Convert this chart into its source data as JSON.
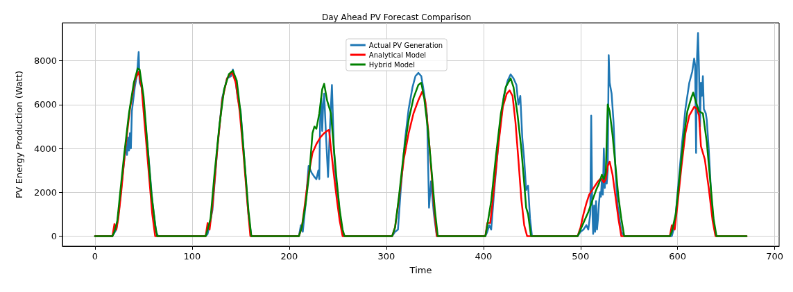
{
  "chart_data": {
    "type": "line",
    "title": "Day Ahead PV Forecast Comparison",
    "xlabel": "Time",
    "ylabel": "PV Energy Production (Watt)",
    "xlim": [
      -33.5,
      704.5
    ],
    "xticks": [
      0,
      100,
      200,
      300,
      400,
      500,
      600,
      700
    ],
    "ylim": [
      -460,
      9730
    ],
    "yticks": [
      0,
      2000,
      4000,
      6000,
      8000
    ],
    "grid": true,
    "legend": "top",
    "marker": "none",
    "line_style": "solid",
    "series": [
      {
        "name": "Actual PV Generation",
        "color": "#1f77b4",
        "x": [
          0,
          18,
          20,
          22,
          25,
          29,
          32,
          33,
          34,
          35,
          36,
          37,
          38,
          41,
          43,
          44,
          45,
          46,
          48,
          51,
          55,
          59,
          63,
          65,
          114,
          116,
          118,
          121,
          126,
          131,
          136,
          140,
          142,
          145,
          147,
          150,
          154,
          158,
          161,
          210,
          212,
          214,
          217,
          220,
          223,
          226,
          228,
          230,
          231,
          232,
          233,
          234,
          235,
          236,
          238,
          240,
          242,
          244,
          246,
          248,
          250,
          253,
          256,
          306,
          309,
          312,
          315,
          319,
          323,
          327,
          330,
          333,
          336,
          339,
          342,
          344,
          346,
          349,
          352,
          402,
          404,
          406,
          408,
          411,
          416,
          421,
          425,
          428,
          431,
          434,
          436,
          438,
          440,
          442,
          444,
          446,
          448,
          450,
          497,
          500,
          503,
          506,
          508,
          510,
          511,
          512,
          513,
          514,
          515,
          516,
          517,
          518,
          519,
          520,
          521,
          522,
          523,
          524,
          525,
          526,
          527,
          528,
          529,
          530,
          532,
          534,
          536,
          538,
          540,
          542,
          545,
          592,
          594,
          597,
          600,
          604,
          608,
          612,
          615,
          617,
          618,
          619,
          620,
          621,
          622,
          623,
          624,
          625,
          626,
          627,
          629,
          630,
          632,
          635,
          638
        ],
        "values": [
          0,
          0,
          150,
          300,
          1300,
          3000,
          4200,
          3700,
          4500,
          3900,
          4700,
          4000,
          5700,
          6800,
          7300,
          7800,
          8400,
          7000,
          6800,
          5600,
          3700,
          1600,
          200,
          0,
          0,
          100,
          500,
          1200,
          4000,
          6300,
          7200,
          7300,
          7600,
          7000,
          6300,
          5700,
          3400,
          1000,
          0,
          0,
          500,
          200,
          1500,
          3200,
          2900,
          2700,
          2600,
          3000,
          2600,
          5700,
          6300,
          4800,
          6000,
          6500,
          4500,
          2700,
          5000,
          6900,
          4000,
          2600,
          1900,
          700,
          0,
          0,
          200,
          300,
          2200,
          4300,
          5800,
          6800,
          7300,
          7450,
          7300,
          6500,
          5500,
          1300,
          2500,
          1000,
          0,
          0,
          200,
          500,
          300,
          2000,
          4500,
          6400,
          7100,
          7380,
          7200,
          6900,
          6000,
          6400,
          4500,
          3500,
          2100,
          2300,
          800,
          0,
          0,
          200,
          300,
          500,
          300,
          1000,
          5500,
          1500,
          100,
          1400,
          200,
          1600,
          300,
          800,
          1500,
          2000,
          1800,
          2600,
          1900,
          4000,
          2200,
          3000,
          2400,
          3000,
          8260,
          7000,
          6500,
          5200,
          3000,
          1500,
          800,
          200,
          0,
          0,
          0,
          500,
          2000,
          4000,
          5800,
          7000,
          7500,
          8100,
          7800,
          3800,
          8200,
          9270,
          7600,
          5000,
          7000,
          6400,
          7300,
          5800,
          5600,
          5300,
          4000,
          1500,
          300
        ]
      },
      {
        "name": "Analytical Model",
        "color": "#ff0000",
        "x": [
          0,
          18,
          20,
          22,
          24,
          27,
          31,
          36,
          41,
          45,
          48,
          51,
          55,
          59,
          62,
          114,
          116,
          118,
          121,
          126,
          131,
          136,
          141,
          145,
          149,
          153,
          157,
          160,
          210,
          213,
          216,
          220,
          224,
          228,
          232,
          236,
          239,
          241,
          243,
          246,
          249,
          252,
          255,
          306,
          309,
          313,
          318,
          323,
          328,
          333,
          337,
          340,
          343,
          346,
          349,
          352,
          402,
          404,
          407,
          410,
          415,
          420,
          424,
          427,
          430,
          433,
          436,
          439,
          442,
          445,
          497,
          500,
          503,
          506,
          509,
          512,
          515,
          518,
          520,
          522,
          524,
          526,
          528,
          530,
          533,
          536,
          539,
          542,
          592,
          594,
          597,
          600,
          604,
          608,
          612,
          617,
          620,
          622,
          624,
          628,
          632,
          636,
          639,
          671
        ],
        "values": [
          0,
          0,
          550,
          300,
          800,
          2000,
          3900,
          5800,
          7100,
          7500,
          6800,
          5200,
          3100,
          1000,
          0,
          0,
          600,
          300,
          1400,
          4000,
          6200,
          7200,
          7500,
          7000,
          5700,
          3700,
          1500,
          0,
          0,
          400,
          1400,
          2800,
          3800,
          4200,
          4500,
          4700,
          4800,
          4850,
          4000,
          2800,
          1700,
          700,
          0,
          0,
          400,
          1700,
          3500,
          4700,
          5600,
          6200,
          6600,
          6200,
          4900,
          3200,
          1400,
          0,
          0,
          600,
          600,
          1800,
          4000,
          5900,
          6500,
          6650,
          6400,
          5200,
          3500,
          1700,
          500,
          0,
          0,
          400,
          1000,
          1500,
          1900,
          2100,
          2300,
          2500,
          2600,
          2600,
          2450,
          2600,
          3200,
          3400,
          2800,
          1800,
          800,
          0,
          0,
          500,
          300,
          1500,
          3200,
          4700,
          5500,
          5900,
          5800,
          5500,
          4100,
          3500,
          2200,
          700,
          0,
          0
        ]
      },
      {
        "name": "Hybrid Model",
        "color": "#008000",
        "x": [
          0,
          18,
          20,
          23,
          26,
          30,
          35,
          40,
          44,
          46,
          50,
          54,
          58,
          62,
          64,
          114,
          116,
          119,
          123,
          128,
          133,
          138,
          142,
          146,
          150,
          154,
          158,
          161,
          210,
          213,
          217,
          221,
          224,
          226,
          228,
          231,
          234,
          236,
          239,
          243,
          246,
          249,
          252,
          255,
          257,
          306,
          309,
          313,
          318,
          323,
          328,
          333,
          336,
          339,
          343,
          347,
          350,
          353,
          402,
          404,
          408,
          413,
          418,
          423,
          428,
          431,
          435,
          439,
          442,
          444,
          446,
          449,
          497,
          500,
          504,
          508,
          512,
          516,
          519,
          522,
          524,
          526,
          528,
          530,
          533,
          536,
          539,
          542,
          545,
          592,
          594,
          598,
          602,
          606,
          610,
          614,
          616,
          619,
          622,
          626,
          630,
          634,
          637,
          640,
          671
        ],
        "values": [
          0,
          0,
          200,
          700,
          2000,
          3700,
          5600,
          7000,
          7650,
          7600,
          6400,
          4200,
          2000,
          500,
          0,
          0,
          300,
          800,
          2800,
          5000,
          6700,
          7400,
          7550,
          7100,
          5600,
          3400,
          1200,
          0,
          0,
          400,
          1500,
          3000,
          4700,
          5000,
          4900,
          5600,
          6700,
          6950,
          6200,
          5600,
          4000,
          2500,
          1200,
          300,
          0,
          0,
          400,
          1800,
          3800,
          5300,
          6300,
          6900,
          7000,
          6300,
          4800,
          2800,
          1200,
          0,
          0,
          500,
          1600,
          3700,
          5600,
          6800,
          7200,
          6800,
          5600,
          4000,
          2400,
          1300,
          1000,
          0,
          0,
          300,
          700,
          1100,
          1600,
          2100,
          2400,
          2800,
          2600,
          2900,
          6000,
          5700,
          4600,
          3200,
          1800,
          800,
          0,
          0,
          200,
          1000,
          2700,
          4400,
          5700,
          6300,
          6550,
          6100,
          5700,
          5600,
          4300,
          2300,
          800,
          0,
          0
        ]
      }
    ]
  }
}
